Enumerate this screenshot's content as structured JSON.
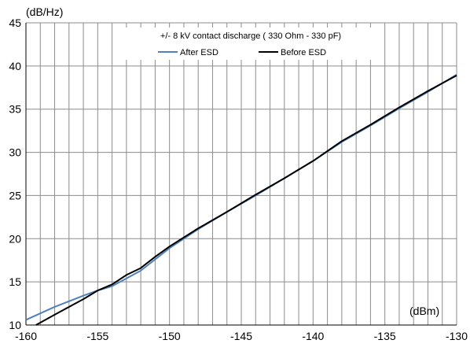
{
  "chart_data": {
    "type": "line",
    "title": "+/- 8 kV contact discharge ( 330 Ohm - 330 pF)",
    "xlabel": "(dBm)",
    "ylabel": "(dB/Hz)",
    "xlim": [
      -160,
      -130
    ],
    "ylim": [
      10,
      45
    ],
    "x_ticks": [
      "-160",
      "-155",
      "-150",
      "-145",
      "-140",
      "-135",
      "-130"
    ],
    "y_ticks": [
      "10",
      "15",
      "20",
      "25",
      "30",
      "35",
      "40",
      "45"
    ],
    "x_minor_step": 1,
    "y_major_step": 5,
    "grid": true,
    "legend_position": "top-center",
    "series": [
      {
        "name": "After ESD",
        "color": "#4f81bd",
        "x": [
          -160,
          -158,
          -156,
          -155,
          -154,
          -153,
          -152,
          -151,
          -150,
          -148,
          -146,
          -144,
          -142,
          -140,
          -138,
          -136,
          -134,
          -132,
          -130
        ],
        "y": [
          10.6,
          12.1,
          13.4,
          14.0,
          14.5,
          15.4,
          16.3,
          17.6,
          18.9,
          21.1,
          23.1,
          25.0,
          27.0,
          29.0,
          31.2,
          33.1,
          35.1,
          37.0,
          39.0
        ]
      },
      {
        "name": "Before ESD",
        "color": "#000000",
        "x": [
          -159.3,
          -158,
          -156,
          -155,
          -154,
          -153,
          -152,
          -151,
          -150,
          -148,
          -146,
          -144,
          -142,
          -140,
          -138,
          -136,
          -134,
          -132,
          -130
        ],
        "y": [
          10.0,
          11.2,
          13.0,
          14.0,
          14.7,
          15.8,
          16.6,
          17.9,
          19.1,
          21.2,
          23.1,
          25.1,
          27.0,
          29.0,
          31.3,
          33.2,
          35.2,
          37.1,
          38.9
        ]
      }
    ]
  }
}
